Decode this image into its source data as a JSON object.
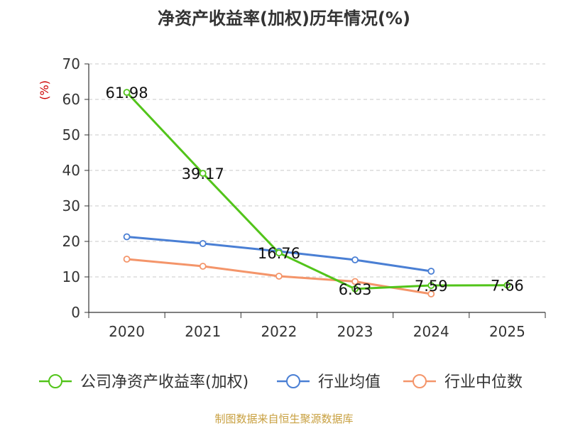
{
  "chart_data": {
    "type": "line",
    "title": "净资产收益率(加权)历年情况(%)",
    "ylabel": "(%)",
    "xlabel": "",
    "categories": [
      "2020",
      "2021",
      "2022",
      "2023",
      "2024",
      "2025"
    ],
    "ylim": [
      0,
      70
    ],
    "yticks": [
      0,
      10,
      20,
      30,
      40,
      50,
      60,
      70
    ],
    "grid": true,
    "legend_position": "bottom",
    "series": [
      {
        "name": "公司净资产收益率(加权)",
        "color": "#52c41a",
        "values": [
          61.98,
          39.17,
          16.76,
          6.63,
          7.59,
          7.66
        ],
        "labels": [
          "61.98",
          "39.17",
          "16.76",
          "6.63",
          "7.59",
          "7.66"
        ],
        "show_labels": true
      },
      {
        "name": "行业均值",
        "color": "#4a7fd4",
        "values": [
          21.3,
          19.4,
          17.2,
          14.8,
          11.6,
          null
        ],
        "show_labels": false
      },
      {
        "name": "行业中位数",
        "color": "#f4956a",
        "values": [
          15.0,
          13.0,
          10.2,
          8.7,
          5.2,
          null
        ],
        "show_labels": false
      }
    ],
    "source": "制图数据来自恒生聚源数据库"
  }
}
